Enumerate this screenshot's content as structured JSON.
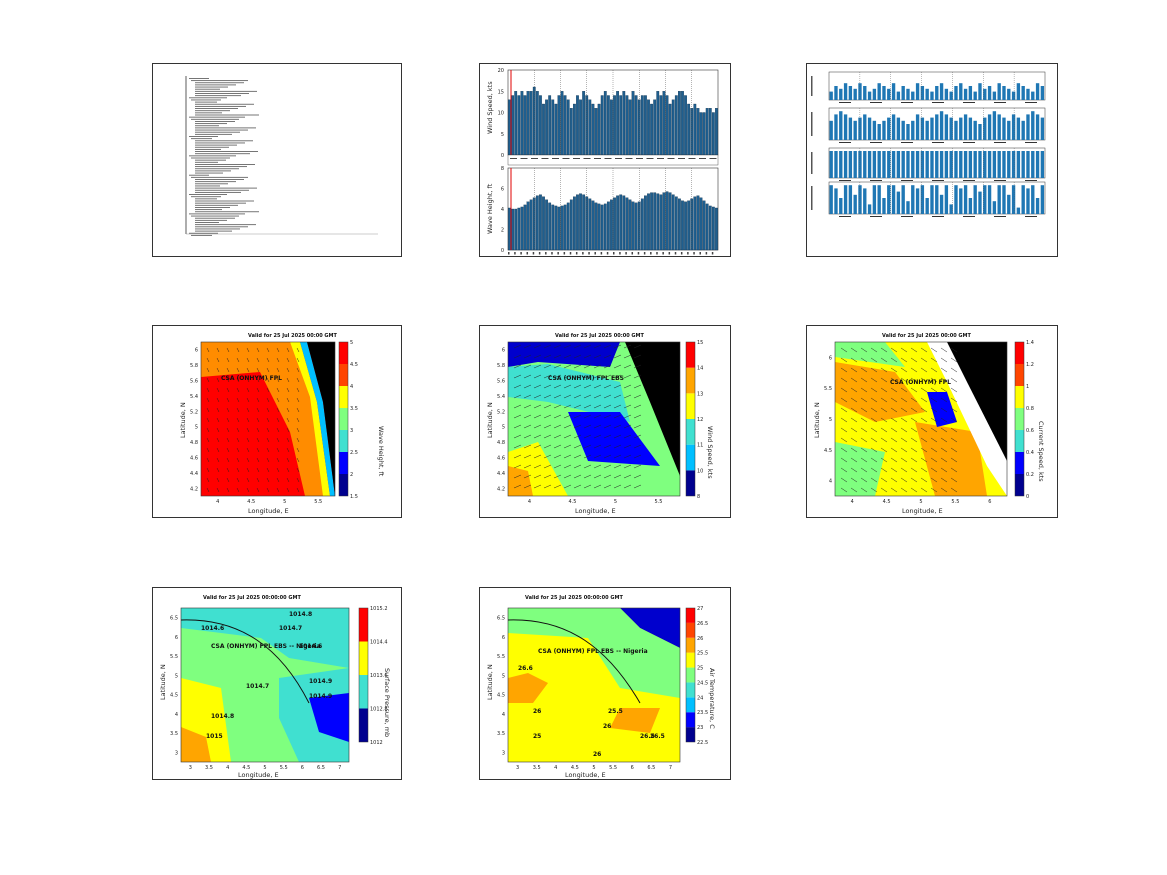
{
  "panels": {
    "report": {
      "lines": 74
    },
    "wind_wave_bars": {
      "wind": {
        "ylabel": "Wind Speed, kts",
        "yticks": [
          "0",
          "5",
          "10",
          "15",
          "20"
        ],
        "ylim": [
          0,
          20
        ]
      },
      "wave": {
        "ylabel": "Wave Height, ft",
        "yticks": [
          "0",
          "2",
          "4",
          "6",
          "8"
        ],
        "ylim": [
          0,
          8
        ]
      }
    },
    "multi_bars": {
      "subplots": 4
    },
    "map_wave": {
      "title": "Valid for 25 Jul 2025 00:00 GMT",
      "xlabel": "Longitude, E",
      "ylabel": "Latitude, N",
      "point_label": "CSA (ONHYM) FPL",
      "xticks": [
        "4",
        "4.5",
        "5",
        "5.5"
      ],
      "yticks": [
        "4.2",
        "4.4",
        "4.6",
        "4.8",
        "5",
        "5.2",
        "5.4",
        "5.6",
        "5.8",
        "6"
      ],
      "cbar_ticks": [
        "1.5",
        "2",
        "2.5",
        "3",
        "3.5",
        "4",
        "4.5",
        "5"
      ],
      "cbar_label": "Wave Height, ft"
    },
    "map_wind": {
      "title": "Valid for 25 Jul 2025 00:00 GMT",
      "xlabel": "Longitude, E",
      "ylabel": "Latitude, N",
      "point_label": "CSA (ONHYM) FPL EBS",
      "xticks": [
        "4",
        "4.5",
        "5",
        "5.5"
      ],
      "yticks": [
        "4.2",
        "4.4",
        "4.6",
        "4.8",
        "5",
        "5.2",
        "5.4",
        "5.6",
        "5.8",
        "6"
      ],
      "cbar_ticks": [
        "8",
        "10",
        "11",
        "12",
        "13",
        "14",
        "15"
      ],
      "cbar_label": "Wind Speed, kts"
    },
    "map_current": {
      "title": "Valid for 25 Jul 2025 00:00 GMT",
      "xlabel": "Longitude, E",
      "ylabel": "Latitude, N",
      "point_label": "CSA (ONHYM) FPL",
      "xticks": [
        "4",
        "4.5",
        "5",
        "5.5",
        "6"
      ],
      "yticks": [
        "4",
        "4.5",
        "5",
        "5.5",
        "6"
      ],
      "cbar_ticks": [
        "0",
        "0.2",
        "0.4",
        "0.6",
        "0.8",
        "1",
        "1.2",
        "1.4"
      ],
      "cbar_label": "Current Speed, kts"
    },
    "map_pressure": {
      "title": "Valid for 25 Jul 2025 00:00:00 GMT",
      "xlabel": "Longitude, E",
      "ylabel": "Latitude, N",
      "point_label": "CSA (ONHYM) FPL EBS -- Nigeria",
      "xticks": [
        "3",
        "3.5",
        "4",
        "4.5",
        "5",
        "5.5",
        "6",
        "6.5",
        "7"
      ],
      "yticks": [
        "3",
        "3.5",
        "4",
        "4.5",
        "5",
        "5.5",
        "6",
        "6.5"
      ],
      "cbar_ticks": [
        "1012",
        "1012.8",
        "1013.6",
        "1014.4",
        "1015.2"
      ],
      "cbar_label": "Surface Pressure, mb",
      "contours": [
        "1014.8",
        "1014.7",
        "1014.6",
        "1014.6",
        "1014.9",
        "1014.7",
        "1014.8",
        "1014.9",
        "1015"
      ]
    },
    "map_temp": {
      "title": "Valid for 25 Jul 2025 00:00:00 GMT",
      "xlabel": "Longitude, E",
      "ylabel": "Latitude, N",
      "point_label": "CSA (ONHYM) FPL EBS -- Nigeria",
      "xticks": [
        "3",
        "3.5",
        "4",
        "4.5",
        "5",
        "5.5",
        "6",
        "6.5",
        "7"
      ],
      "yticks": [
        "3",
        "3.5",
        "4",
        "4.5",
        "5",
        "5.5",
        "6",
        "6.5"
      ],
      "cbar_ticks": [
        "22.5",
        "23",
        "23.5",
        "24",
        "24.5",
        "25",
        "25.5",
        "26",
        "26.5",
        "27"
      ],
      "cbar_label": "Air Temperature, C",
      "contours": [
        "26.5",
        "26",
        "25.5",
        "26",
        "25",
        "26",
        "26.5",
        "26.6"
      ]
    }
  },
  "colors": {
    "bar": "#1f77b4",
    "land": "#000000",
    "jet": [
      "#00008f",
      "#0000ff",
      "#00bfff",
      "#40e0d0",
      "#7fff7f",
      "#ffff00",
      "#ffa500",
      "#ff4500",
      "#ff0000"
    ]
  },
  "chart_data": [
    {
      "type": "table",
      "title": ""
    },
    {
      "type": "bar",
      "ylabel": "Wind Speed, kts",
      "ylim": [
        0,
        20
      ],
      "series": [
        {
          "values": [
            13,
            14,
            15,
            14,
            15,
            14,
            15,
            15,
            16,
            15,
            14,
            12,
            13,
            14,
            13,
            12,
            14,
            15,
            14,
            13,
            11,
            12,
            14,
            13,
            15,
            14,
            13,
            12,
            11,
            12,
            14,
            15,
            14,
            13,
            14,
            15,
            14,
            15,
            14,
            13,
            15,
            14,
            13,
            14,
            14,
            13,
            12,
            13,
            15,
            14,
            15,
            14,
            12,
            13,
            14,
            15,
            15,
            14,
            12,
            11,
            12,
            11,
            10,
            10,
            11,
            11,
            10,
            11
          ]
        }
      ]
    },
    {
      "type": "bar",
      "ylabel": "Wave Height, ft",
      "ylim": [
        0,
        8
      ],
      "series": [
        {
          "values": [
            4.1,
            4.0,
            4.0,
            4.1,
            4.2,
            4.4,
            4.7,
            4.9,
            5.1,
            5.3,
            5.4,
            5.2,
            4.9,
            4.6,
            4.4,
            4.3,
            4.2,
            4.3,
            4.4,
            4.6,
            4.9,
            5.2,
            5.4,
            5.5,
            5.4,
            5.2,
            5.0,
            4.8,
            4.6,
            4.5,
            4.4,
            4.5,
            4.7,
            4.9,
            5.1,
            5.3,
            5.4,
            5.3,
            5.1,
            4.9,
            4.7,
            4.6,
            4.7,
            5.0,
            5.3,
            5.5,
            5.6,
            5.6,
            5.5,
            5.4,
            5.6,
            5.7,
            5.6,
            5.4,
            5.2,
            5.0,
            4.8,
            4.7,
            4.8,
            5.0,
            5.2,
            5.3,
            5.1,
            4.8,
            4.5,
            4.3,
            4.2,
            4.1
          ]
        }
      ]
    },
    {
      "type": "bar",
      "series": [
        {
          "values": [
            3,
            5,
            4,
            6,
            5,
            4,
            6,
            5,
            3,
            4,
            6,
            5,
            4,
            6,
            3,
            5,
            4,
            3,
            6,
            5,
            4,
            3,
            5,
            6,
            4,
            3,
            5,
            6,
            4,
            5,
            3,
            6,
            4,
            5,
            3,
            6,
            5,
            4,
            3,
            6,
            5,
            4,
            3,
            6,
            5
          ]
        },
        {
          "values": [
            6,
            8,
            9,
            8,
            7,
            6,
            7,
            8,
            7,
            6,
            5,
            6,
            7,
            8,
            7,
            6,
            5,
            6,
            8,
            7,
            6,
            7,
            8,
            9,
            8,
            7,
            6,
            7,
            8,
            7,
            6,
            5,
            7,
            8,
            9,
            8,
            7,
            6,
            8,
            7,
            6,
            8,
            9,
            8,
            7
          ]
        },
        {
          "values": [
            9,
            9,
            9,
            9,
            9,
            9,
            9,
            9,
            9,
            9,
            9,
            9,
            9,
            9,
            9,
            9,
            9,
            9,
            9,
            9,
            9,
            9,
            9,
            9,
            9,
            9,
            9,
            9,
            9,
            9,
            9,
            9,
            9,
            9,
            9,
            9,
            9,
            9,
            9,
            9,
            9,
            9,
            9,
            9,
            9
          ]
        },
        {
          "values": [
            9,
            8,
            5,
            9,
            9,
            6,
            9,
            8,
            3,
            9,
            9,
            5,
            9,
            9,
            7,
            9,
            4,
            9,
            8,
            9,
            5,
            9,
            9,
            6,
            9,
            3,
            9,
            8,
            9,
            5,
            9,
            7,
            9,
            9,
            4,
            9,
            9,
            6,
            9,
            2,
            9,
            8,
            9,
            5,
            9
          ]
        }
      ]
    },
    {
      "type": "heatmap",
      "xlabel": "Longitude, E",
      "ylabel": "Latitude, N",
      "title": "Valid for 25 Jul 2025 00:00 GMT"
    },
    {
      "type": "heatmap",
      "xlabel": "Longitude, E",
      "ylabel": "Latitude, N",
      "title": "Valid for 25 Jul 2025 00:00 GMT"
    },
    {
      "type": "heatmap",
      "xlabel": "Longitude, E",
      "ylabel": "Latitude, N",
      "title": "Valid for 25 Jul 2025 00:00 GMT"
    },
    {
      "type": "heatmap",
      "xlabel": "Longitude, E",
      "ylabel": "Latitude, N",
      "title": "Valid for 25 Jul 2025 00:00:00 GMT"
    },
    {
      "type": "heatmap",
      "xlabel": "Longitude, E",
      "ylabel": "Latitude, N",
      "title": "Valid for 25 Jul 2025 00:00:00 GMT"
    }
  ]
}
